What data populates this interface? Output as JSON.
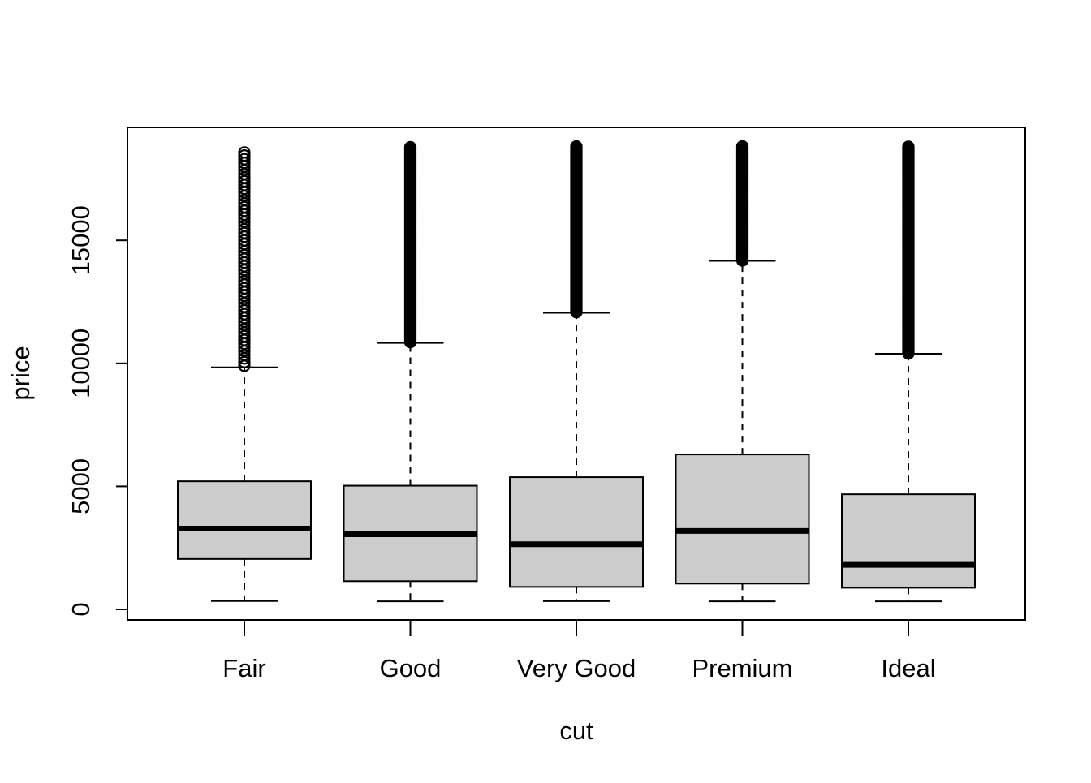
{
  "chart_data": {
    "type": "box",
    "title": "",
    "xlabel": "cut",
    "ylabel": "price",
    "ylim": [
      -300,
      19600
    ],
    "yticks": [
      0,
      5000,
      10000,
      15000
    ],
    "ytick_labels": [
      "0",
      "5000",
      "10000",
      "15000"
    ],
    "grid": false,
    "categories": [
      "Fair",
      "Good",
      "Very Good",
      "Premium",
      "Ideal"
    ],
    "boxes": [
      {
        "category": "Fair",
        "whisker_low": 337,
        "q1": 2050,
        "median": 3282,
        "q3": 5206,
        "whisker_high": 9836,
        "outliers_range": [
          9900,
          18574
        ]
      },
      {
        "category": "Good",
        "whisker_low": 327,
        "q1": 1145,
        "median": 3050,
        "q3": 5028,
        "whisker_high": 10830,
        "outliers_range": [
          10860,
          18788
        ]
      },
      {
        "category": "Very Good",
        "whisker_low": 336,
        "q1": 912,
        "median": 2648,
        "q3": 5373,
        "whisker_high": 12057,
        "outliers_range": [
          12080,
          18818
        ]
      },
      {
        "category": "Premium",
        "whisker_low": 326,
        "q1": 1046,
        "median": 3185,
        "q3": 6296,
        "whisker_high": 14165,
        "outliers_range": [
          14180,
          18823
        ]
      },
      {
        "category": "Ideal",
        "whisker_low": 326,
        "q1": 878,
        "median": 1810,
        "q3": 4678,
        "whisker_high": 10390,
        "outliers_range": [
          10400,
          18806
        ]
      }
    ],
    "colors": {
      "box_fill": "#cccccc",
      "stroke": "#000000",
      "background": "#ffffff"
    }
  }
}
